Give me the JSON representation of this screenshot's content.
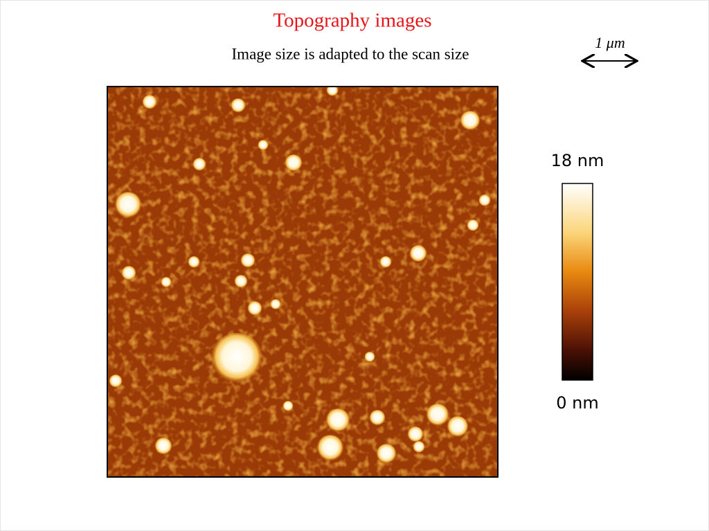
{
  "header": {
    "title": "Topography images",
    "subtitle": "Image size is adapted to the scan size"
  },
  "scale_bar": {
    "label": "1 μm"
  },
  "colorbar": {
    "max_label": "18 nm",
    "min_label": "0 nm"
  }
}
